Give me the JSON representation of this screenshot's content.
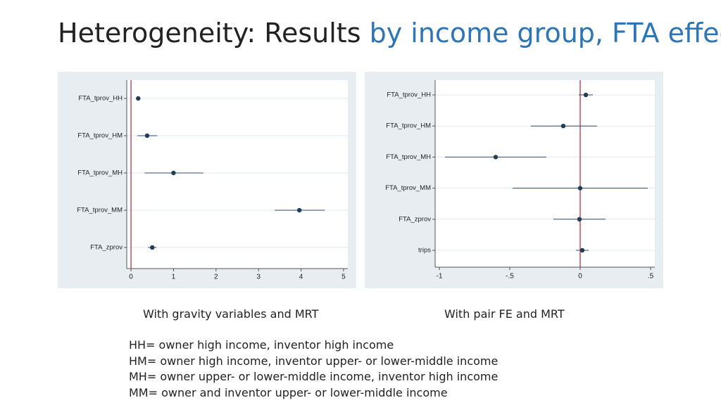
{
  "title": {
    "main": "Heterogeneity: Results ",
    "accent": "by income group, FTA effect"
  },
  "colors": {
    "accent": "#2e75b6",
    "panel_bg": "#e8edf1",
    "ref_line": "#b22234",
    "point": "#1f3d5a",
    "ci": "#2a4b6b"
  },
  "chart_data": [
    {
      "type": "scatter",
      "subtype": "coefficient-plot",
      "caption": "With gravity variables and MRT",
      "categories": [
        "FTA_tprov_HH",
        "FTA_tprov_HM",
        "FTA_tprov_MH",
        "FTA_tprov_MM",
        "FTA_zprov"
      ],
      "estimates": [
        0.17,
        0.38,
        1.0,
        3.96,
        0.5
      ],
      "ci_low": [
        0.12,
        0.15,
        0.32,
        3.38,
        0.4
      ],
      "ci_high": [
        0.22,
        0.62,
        1.7,
        4.56,
        0.6
      ],
      "xlim": [
        -0.1,
        5.1
      ],
      "xticks": [
        "0",
        "1",
        "2",
        "3",
        "4",
        "5"
      ],
      "xtick_values": [
        0,
        1,
        2,
        3,
        4,
        5
      ],
      "ref_line": 0,
      "grid": true
    },
    {
      "type": "scatter",
      "subtype": "coefficient-plot",
      "caption": "With pair FE and MRT",
      "categories": [
        "FTA_tprov_HH",
        "FTA_tprov_HM",
        "FTA_tprov_MH",
        "FTA_tprov_MM",
        "FTA_zprov",
        "trips"
      ],
      "estimates": [
        0.04,
        -0.12,
        -0.6,
        0.0,
        -0.005,
        0.015
      ],
      "ci_low": [
        -0.01,
        -0.35,
        -0.96,
        -0.48,
        -0.19,
        -0.03
      ],
      "ci_high": [
        0.09,
        0.12,
        -0.24,
        0.48,
        0.18,
        0.06
      ],
      "xlim": [
        -1.03,
        0.53
      ],
      "xticks": [
        "-1",
        "-.5",
        "0",
        ".5"
      ],
      "xtick_values": [
        -1,
        -0.5,
        0,
        0.5
      ],
      "ref_line": 0,
      "grid": true
    }
  ],
  "legend": [
    "HH= owner high income, inventor high income",
    "HM= owner high income, inventor upper- or lower-middle income",
    "MH= owner upper- or lower-middle income, inventor high income",
    "MM= owner  and inventor upper- or lower-middle income"
  ]
}
